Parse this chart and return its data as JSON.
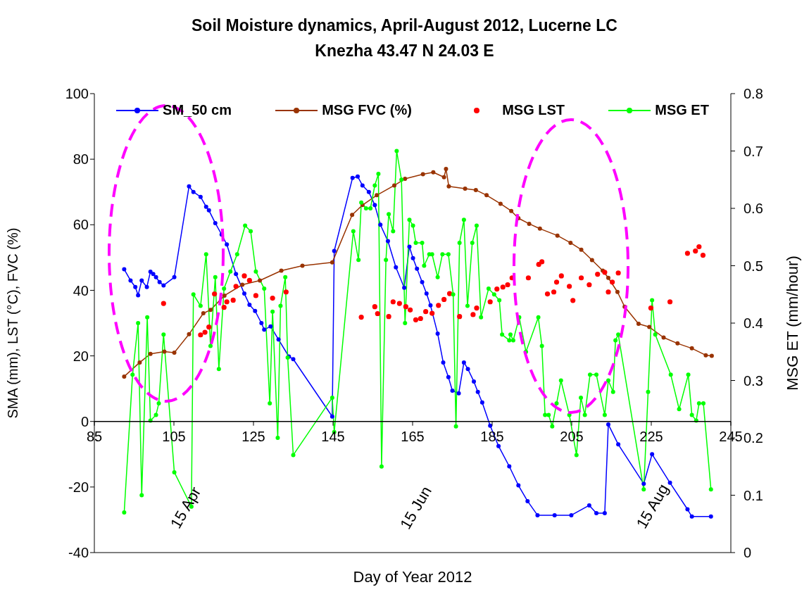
{
  "chart_data": {
    "type": "line",
    "title": "Soil Moisture dynamics, April-August 2012, Lucerne LC",
    "subtitle": "Knezha  43.47 N  24.03 E",
    "xlabel": "Day of Year 2012",
    "ylabel": "SMA (mm), LST (°C),  FVC (%)",
    "y2label": "MSG ET (mm/hour)",
    "xlim": [
      85,
      245
    ],
    "xticks": [
      85,
      105,
      125,
      145,
      165,
      185,
      205,
      225,
      245
    ],
    "ylim": [
      -40,
      100
    ],
    "yticks": [
      -40,
      -20,
      0,
      20,
      40,
      60,
      80,
      100
    ],
    "y2lim": [
      0,
      0.8
    ],
    "y2ticks": [
      0,
      0.1,
      0.2,
      0.3,
      0.4,
      0.5,
      0.6,
      0.7,
      0.8
    ],
    "legend": "top",
    "marker": "circle",
    "line_style": "solid",
    "annotations": [
      "15 Apr",
      "15 Jun",
      "15 Aug"
    ],
    "series": [
      {
        "name": "SM_50 cm",
        "type": "line",
        "color": "#0000ff",
        "x": [
          92.5,
          94.1,
          95.3,
          96,
          96.9,
          98.2,
          99.1,
          99.8,
          100.5,
          101.4,
          102.4,
          105.1,
          108.8,
          109.9,
          111.7,
          113.1,
          113.8,
          115.4,
          117,
          118.3,
          120.6,
          122.7,
          124,
          125.4,
          127,
          127.7,
          129.3,
          131.3,
          133.9,
          135,
          144.8,
          145.3,
          149.9,
          151.2,
          152.4,
          154,
          155.5,
          156.9,
          158.8,
          160.8,
          162.9,
          164.2,
          165.1,
          166.1,
          167.4,
          168.5,
          169.5,
          171.3,
          172.7,
          174,
          175,
          176.6,
          177.9,
          178.9,
          180.4,
          181.4,
          182.5,
          184.5,
          186.6,
          189.3,
          191.6,
          193.9,
          196.4,
          200.7,
          204.9,
          209.4,
          211.2,
          213.3,
          214.2,
          216.7,
          223.1,
          225.2,
          229.7,
          234.1,
          235.2,
          240
        ],
        "values": [
          46.4,
          43,
          41,
          38.5,
          43,
          41,
          45.7,
          45,
          44,
          42.5,
          41.5,
          44,
          71.7,
          70,
          68.5,
          65.5,
          64.4,
          60.5,
          57,
          54,
          45,
          39,
          35.6,
          33.7,
          30,
          28,
          29,
          25,
          19.8,
          19,
          1.5,
          52,
          74.3,
          74.7,
          72,
          70,
          66,
          60,
          55,
          47,
          40.8,
          53.3,
          49.8,
          46.6,
          42.5,
          39,
          35.4,
          26.8,
          18,
          13.5,
          9.4,
          8.6,
          18,
          16,
          12.2,
          9,
          5.8,
          -1.3,
          -7.5,
          -13.7,
          -19.5,
          -24.3,
          -28.6,
          -28.6,
          -28.6,
          -25.6,
          -28,
          -28,
          -0.9,
          -7,
          -19,
          -10,
          -18.7,
          -26.8,
          -29,
          -29
        ]
      },
      {
        "name": "MSG FVC (%)",
        "type": "line",
        "color": "#993300",
        "x": [
          92.5,
          96.4,
          99.1,
          102.6,
          105.1,
          108.8,
          112.4,
          114.2,
          117.7,
          122.2,
          126.6,
          132,
          137.3,
          144.8,
          149.8,
          152.4,
          156,
          160.4,
          163.1,
          167.6,
          170.2,
          172.9,
          173.4,
          174.1,
          178.2,
          180.9,
          183.6,
          187.1,
          189.8,
          191.6,
          194.3,
          197,
          201.4,
          204.7,
          207.4,
          210.1,
          212.8,
          214.2,
          216.5,
          218.3,
          221.8,
          224.5,
          228.1,
          231.6,
          235.2,
          238.7,
          240.2
        ],
        "values": [
          13.7,
          18,
          20.6,
          21.3,
          21,
          26.6,
          33,
          34,
          38.4,
          41.7,
          43,
          46,
          47.5,
          48.5,
          63,
          66,
          69,
          72,
          74,
          75.4,
          76,
          74.5,
          77,
          71.7,
          71,
          70.6,
          69,
          66.4,
          64.2,
          62,
          60.3,
          58.8,
          56.7,
          54.5,
          52.4,
          49.2,
          46,
          43.8,
          39.5,
          35,
          29.8,
          28.8,
          25.6,
          23.8,
          22.3,
          20.2,
          20
        ]
      },
      {
        "name": "MSG LST",
        "type": "scatter",
        "color": "#ff0000",
        "x": [
          102.4,
          111.7,
          112.8,
          113.8,
          115.2,
          117.6,
          118.3,
          119.9,
          120.6,
          122.7,
          124,
          125.6,
          129.8,
          133.2,
          152.1,
          155.5,
          156.2,
          159,
          160.1,
          161.7,
          163.3,
          164.4,
          165.8,
          167,
          168.3,
          169.9,
          171.5,
          172.9,
          174.3,
          176.8,
          180.2,
          181.1,
          184.5,
          186.2,
          187.7,
          188.9,
          190,
          194.1,
          196.7,
          197.5,
          198.9,
          200.5,
          201.2,
          202.4,
          204.4,
          205.3,
          207.4,
          209.4,
          211.5,
          213.3,
          214.2,
          215.2,
          216.7,
          224.9,
          229.7,
          234.1,
          236.1,
          237,
          238
        ],
        "values": [
          36,
          26.4,
          27.2,
          28.8,
          38.9,
          34.8,
          36.5,
          37,
          41.2,
          44.4,
          43,
          38.4,
          37.6,
          39.5,
          31.8,
          35,
          32.9,
          32,
          36.5,
          36,
          35,
          34,
          31,
          31.4,
          33.5,
          33,
          35.4,
          37.2,
          39,
          32,
          32.6,
          34.6,
          36.5,
          40.4,
          41,
          41.7,
          43.8,
          43.8,
          47.9,
          48.7,
          38.9,
          39.5,
          42.5,
          44.4,
          41.2,
          36.9,
          43.8,
          41.7,
          44.9,
          45.5,
          39.5,
          42.5,
          45.3,
          34.6,
          36.5,
          51.3,
          52,
          53.3,
          50.7
        ]
      },
      {
        "name": "MSG ET",
        "type": "line",
        "axis": "y2",
        "color": "#00ff00",
        "x": [
          92.5,
          94.6,
          96,
          96.9,
          98.3,
          99.1,
          100.5,
          101.2,
          102.4,
          105.1,
          109.4,
          109.9,
          111.7,
          113.1,
          114.2,
          115.4,
          116.3,
          117.6,
          119.2,
          120.9,
          122.9,
          124.3,
          125.6,
          127.7,
          129.1,
          129.8,
          131.1,
          131.8,
          133,
          133.6,
          135,
          144.8,
          145.3,
          150.1,
          151.4,
          152.1,
          153.3,
          154.4,
          155.5,
          156.4,
          157.2,
          158.3,
          159,
          160.1,
          161,
          162.2,
          163.1,
          164.2,
          165.1,
          165.8,
          167.4,
          167.9,
          169.2,
          169.9,
          171.3,
          172.5,
          174,
          175.2,
          175.9,
          176.8,
          177.9,
          178.8,
          180,
          181.1,
          182.2,
          184.1,
          185.5,
          186.8,
          187.5,
          189.3,
          189.6,
          190.3,
          191.8,
          193.5,
          196.6,
          197.5,
          198.3,
          199.2,
          200.1,
          201.2,
          202.3,
          204.4,
          206.2,
          207.3,
          208.3,
          209.6,
          211.2,
          213.3,
          214.2,
          215.4,
          216,
          216.7,
          223.1,
          224.2,
          225.2,
          226,
          229.9,
          232,
          234.3,
          235.2,
          236.3,
          237,
          238.1,
          240
        ],
        "values": [
          0.07,
          0.31,
          0.4,
          0.1,
          0.41,
          0.23,
          0.24,
          0.26,
          0.38,
          0.14,
          0.08,
          0.45,
          0.43,
          0.52,
          0.36,
          0.48,
          0.32,
          0.46,
          0.49,
          0.52,
          0.57,
          0.56,
          0.49,
          0.46,
          0.26,
          0.42,
          0.2,
          0.43,
          0.48,
          0.34,
          0.17,
          0.27,
          0.21,
          0.56,
          0.51,
          0.61,
          0.6,
          0.6,
          0.64,
          0.66,
          0.15,
          0.51,
          0.59,
          0.56,
          0.7,
          0.65,
          0.4,
          0.58,
          0.57,
          0.54,
          0.54,
          0.5,
          0.52,
          0.52,
          0.48,
          0.52,
          0.52,
          0.45,
          0.22,
          0.54,
          0.58,
          0.43,
          0.54,
          0.57,
          0.41,
          0.46,
          0.45,
          0.44,
          0.38,
          0.37,
          0.38,
          0.37,
          0.41,
          0.35,
          0.41,
          0.36,
          0.24,
          0.24,
          0.22,
          0.26,
          0.3,
          0.24,
          0.17,
          0.27,
          0.24,
          0.31,
          0.31,
          0.24,
          0.3,
          0.28,
          0.37,
          0.38,
          0.11,
          0.28,
          0.44,
          0.38,
          0.31,
          0.25,
          0.31,
          0.24,
          0.23,
          0.26,
          0.26,
          0.11
        ]
      }
    ]
  }
}
